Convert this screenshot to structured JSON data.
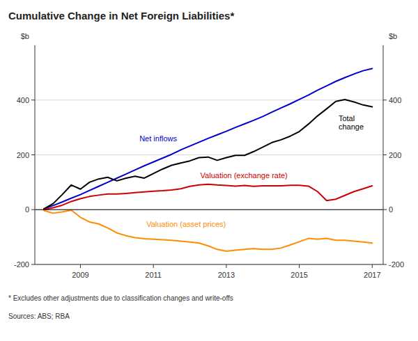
{
  "chart_data": {
    "type": "line",
    "title": "Cumulative Change in Net Foreign Liabilities*",
    "ylabel": "$b",
    "y2label": "$b",
    "footnote": "*     Excludes other adjustments due to classification changes and write-offs",
    "sources": "Sources: ABS; RBA",
    "x": [
      2008.0,
      2008.25,
      2008.5,
      2008.75,
      2009.0,
      2009.25,
      2009.5,
      2009.75,
      2010.0,
      2010.25,
      2010.5,
      2010.75,
      2011.0,
      2011.25,
      2011.5,
      2011.75,
      2012.0,
      2012.25,
      2012.5,
      2012.75,
      2013.0,
      2013.25,
      2013.5,
      2013.75,
      2014.0,
      2014.25,
      2014.5,
      2014.75,
      2015.0,
      2015.25,
      2015.5,
      2015.75,
      2016.0,
      2016.25,
      2016.5,
      2016.75,
      2017.0
    ],
    "series": [
      {
        "name": "Net inflows",
        "color": "#0000CC",
        "values": [
          3,
          15,
          28,
          42,
          55,
          70,
          85,
          100,
          115,
          130,
          145,
          160,
          174,
          188,
          202,
          218,
          232,
          246,
          260,
          273,
          286,
          300,
          313,
          326,
          340,
          356,
          371,
          386,
          402,
          418,
          436,
          452,
          468,
          482,
          495,
          507,
          515
        ]
      },
      {
        "name": "Total\nchange",
        "color": "#000000",
        "values": [
          3,
          22,
          55,
          90,
          75,
          100,
          112,
          118,
          105,
          115,
          122,
          115,
          132,
          148,
          162,
          170,
          178,
          190,
          192,
          180,
          190,
          198,
          198,
          212,
          228,
          245,
          255,
          268,
          285,
          312,
          342,
          368,
          395,
          402,
          393,
          382,
          375
        ]
      },
      {
        "name": "Valuation (exchange rate)",
        "color": "#CC0000",
        "values": [
          0,
          7,
          16,
          30,
          40,
          48,
          53,
          57,
          57,
          59,
          62,
          65,
          67,
          69,
          72,
          76,
          85,
          90,
          93,
          90,
          88,
          86,
          88,
          85,
          87,
          87,
          87,
          89,
          89,
          86,
          66,
          33,
          38,
          52,
          66,
          76,
          87
        ]
      },
      {
        "name": "Valuation (asset prices)",
        "color": "#FF8C00",
        "values": [
          -3,
          -13,
          -8,
          -2,
          -28,
          -45,
          -52,
          -67,
          -85,
          -95,
          -102,
          -106,
          -108,
          -110,
          -112,
          -115,
          -118,
          -122,
          -132,
          -145,
          -152,
          -148,
          -145,
          -142,
          -145,
          -145,
          -140,
          -129,
          -117,
          -105,
          -108,
          -105,
          -112,
          -112,
          -115,
          -118,
          -122
        ]
      }
    ],
    "xlim": [
      2007.75,
      2017.3
    ],
    "xticks": [
      2009,
      2011,
      2013,
      2015,
      2017
    ],
    "ylim": [
      -200,
      600
    ],
    "yticks": [
      -200,
      0,
      200,
      400
    ],
    "y2lim": [
      -200,
      600
    ],
    "y2ticks": [
      -200,
      0,
      200,
      400
    ],
    "grid": true
  }
}
